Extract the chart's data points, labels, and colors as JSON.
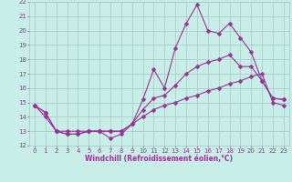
{
  "title": "",
  "xlabel": "Windchill (Refroidissement éolien,°C)",
  "ylabel": "",
  "xlim": [
    -0.5,
    23.5
  ],
  "ylim": [
    12,
    22
  ],
  "yticks": [
    12,
    13,
    14,
    15,
    16,
    17,
    18,
    19,
    20,
    21,
    22
  ],
  "xticks": [
    0,
    1,
    2,
    3,
    4,
    5,
    6,
    7,
    8,
    9,
    10,
    11,
    12,
    13,
    14,
    15,
    16,
    17,
    18,
    19,
    20,
    21,
    22,
    23
  ],
  "bg_color": "#c8eee8",
  "grid_color": "#a8c8c4",
  "line_color": "#993399",
  "line1_x": [
    0,
    1,
    2,
    3,
    4,
    5,
    6,
    7,
    8,
    9,
    10,
    11,
    12,
    13,
    14,
    15,
    16,
    17,
    18,
    19,
    20,
    21,
    22,
    23
  ],
  "line1_y": [
    14.8,
    14.3,
    13.0,
    12.8,
    12.8,
    13.0,
    13.0,
    12.5,
    12.8,
    13.5,
    15.2,
    17.3,
    16.0,
    18.8,
    20.5,
    21.8,
    20.0,
    19.8,
    20.5,
    19.5,
    18.5,
    16.5,
    15.3,
    15.2
  ],
  "line2_x": [
    0,
    1,
    2,
    3,
    4,
    5,
    6,
    7,
    8,
    9,
    10,
    11,
    12,
    13,
    14,
    15,
    16,
    17,
    18,
    19,
    20,
    21,
    22,
    23
  ],
  "line2_y": [
    14.8,
    14.3,
    13.0,
    12.8,
    12.8,
    13.0,
    13.0,
    13.0,
    13.0,
    13.5,
    14.5,
    15.3,
    15.5,
    16.2,
    17.0,
    17.5,
    17.8,
    18.0,
    18.3,
    17.5,
    17.5,
    16.5,
    15.3,
    15.2
  ],
  "line3_x": [
    0,
    1,
    2,
    3,
    4,
    5,
    6,
    7,
    8,
    9,
    10,
    11,
    12,
    13,
    14,
    15,
    16,
    17,
    18,
    19,
    20,
    21,
    22,
    23
  ],
  "line3_y": [
    14.8,
    14.0,
    13.0,
    13.0,
    13.0,
    13.0,
    13.0,
    13.0,
    13.0,
    13.5,
    14.0,
    14.5,
    14.8,
    15.0,
    15.3,
    15.5,
    15.8,
    16.0,
    16.3,
    16.5,
    16.8,
    17.0,
    15.0,
    14.8
  ],
  "tick_fontsize": 5.0,
  "xlabel_fontsize": 5.5
}
